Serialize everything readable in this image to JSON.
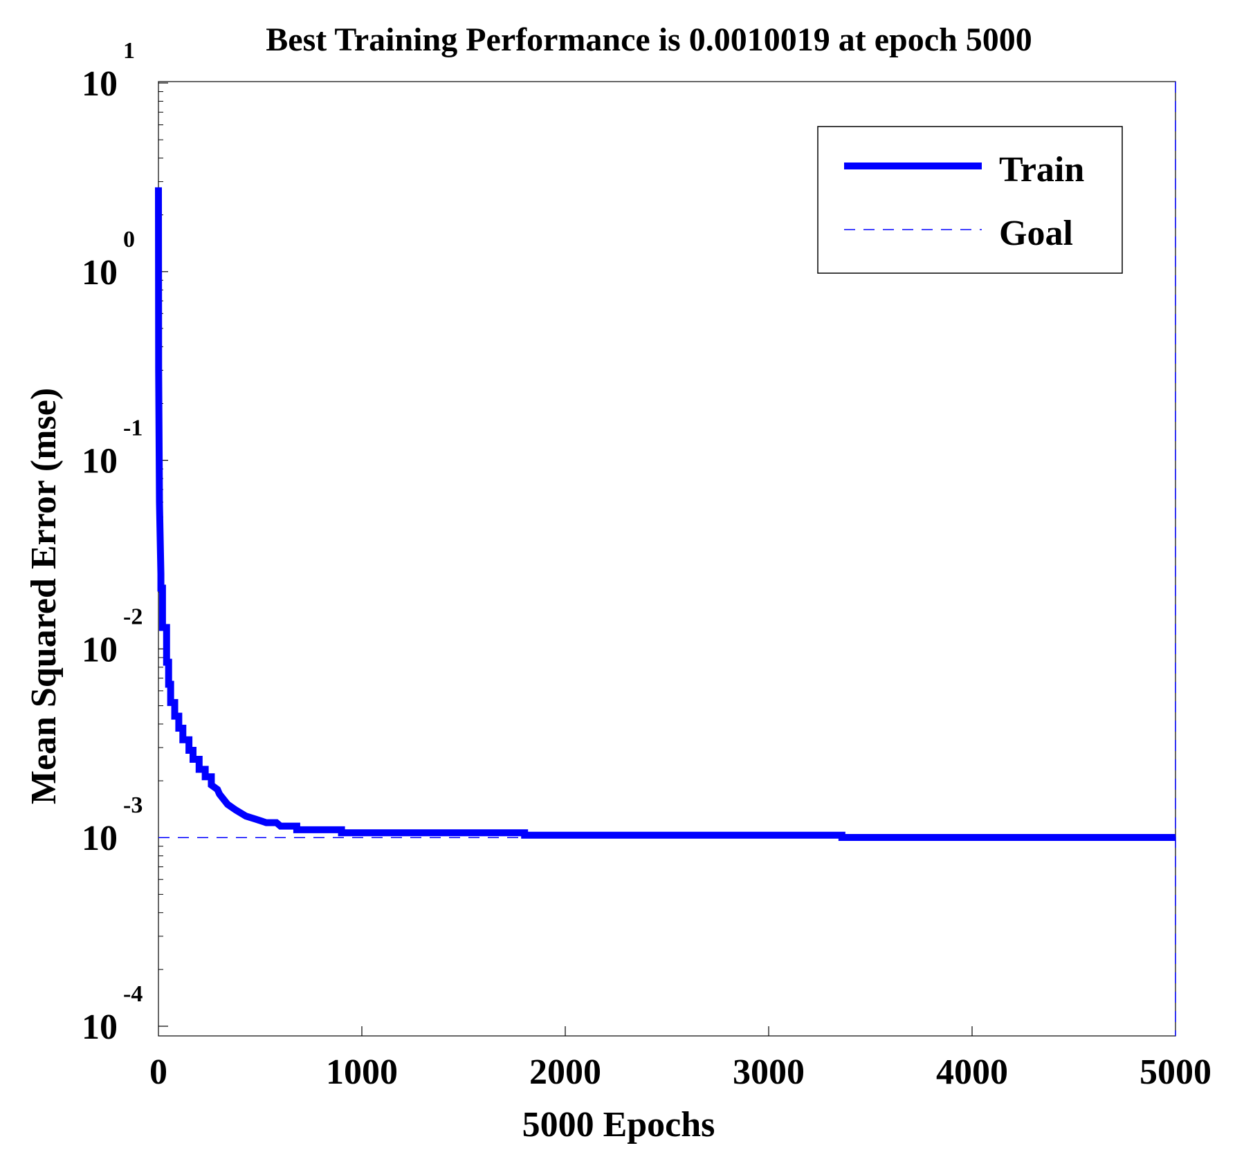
{
  "chart_data": {
    "type": "line",
    "title": "Best Training Performance is 0.0010019 at epoch 5000",
    "xlabel": "5000 Epochs",
    "ylabel": "Mean Squared Error  (mse)",
    "xscale": "linear",
    "yscale": "log",
    "xlim": [
      0,
      5000
    ],
    "ylim": [
      0.0001,
      10
    ],
    "x_ticks": [
      0,
      1000,
      2000,
      3000,
      4000,
      5000
    ],
    "x_tick_labels": [
      "0",
      "1000",
      "2000",
      "3000",
      "4000",
      "5000"
    ],
    "y_ticks": [
      {
        "value": 10,
        "base": "10",
        "exp": "1"
      },
      {
        "value": 1,
        "base": "10",
        "exp": "0"
      },
      {
        "value": 0.1,
        "base": "10",
        "exp": "-1"
      },
      {
        "value": 0.01,
        "base": "10",
        "exp": "-2"
      },
      {
        "value": 0.001,
        "base": "10",
        "exp": "-3"
      },
      {
        "value": 0.0001,
        "base": "10",
        "exp": "-4"
      }
    ],
    "grid": false,
    "legend_position": "top-right",
    "series": [
      {
        "name": "Train",
        "style": "solid-thick",
        "color": "#0000ff",
        "x": [
          0,
          1,
          5,
          12,
          12,
          20,
          20,
          40,
          40,
          50,
          50,
          60,
          60,
          80,
          80,
          100,
          100,
          120,
          120,
          150,
          150,
          170,
          170,
          200,
          200,
          230,
          230,
          260,
          260,
          290,
          300,
          340,
          380,
          430,
          480,
          530,
          580,
          600,
          650,
          680,
          680,
          750,
          800,
          880,
          900,
          900,
          1000,
          1500,
          1800,
          1800,
          2000,
          3000,
          3360,
          3360,
          4000,
          5000
        ],
        "y": [
          2.8,
          0.3,
          0.06,
          0.025,
          0.021,
          0.021,
          0.013,
          0.013,
          0.0085,
          0.0085,
          0.0065,
          0.0065,
          0.0052,
          0.0052,
          0.0044,
          0.0044,
          0.0038,
          0.0038,
          0.0033,
          0.0033,
          0.0029,
          0.0029,
          0.0026,
          0.0026,
          0.0023,
          0.0023,
          0.0021,
          0.0021,
          0.0019,
          0.0018,
          0.0017,
          0.0015,
          0.0014,
          0.0013,
          0.00125,
          0.0012,
          0.0012,
          0.00115,
          0.00115,
          0.00115,
          0.0011,
          0.0011,
          0.0011,
          0.0011,
          0.0011,
          0.00106,
          0.00106,
          0.00106,
          0.00106,
          0.00103,
          0.00103,
          0.00103,
          0.00103,
          0.0010019,
          0.0010019,
          0.0010019
        ]
      },
      {
        "name": "Goal",
        "style": "dashed",
        "color": "#0000ff",
        "x": [
          0,
          5000
        ],
        "y": [
          0.001,
          0.001
        ]
      }
    ],
    "annotations": [
      {
        "type": "vertical-dashed-line",
        "x": 5000,
        "label": "best epoch"
      }
    ]
  }
}
